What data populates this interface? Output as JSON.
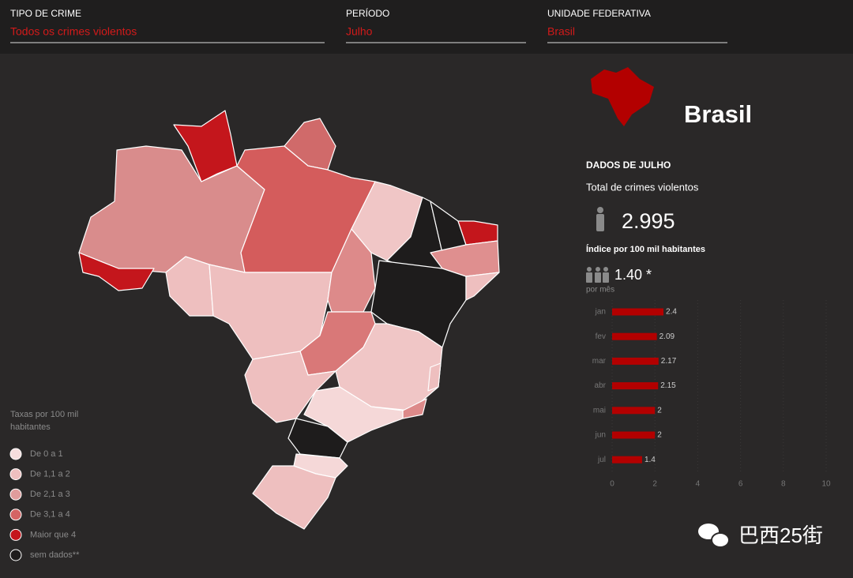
{
  "filters": [
    {
      "label": "TIPO DE CRIME",
      "value": "Todos os crimes violentos"
    },
    {
      "label": "PERÍODO",
      "value": "Julho"
    },
    {
      "label": "UNIDADE FEDERATIVA",
      "value": "Brasil"
    }
  ],
  "summary": {
    "place": "Brasil",
    "heading": "DADOS DE JULHO",
    "total_label": "Total de crimes violentos",
    "total": "2.995",
    "index_label": "Índice por 100 mil habitantes",
    "index": "1.40 *",
    "index_unit": "por mês"
  },
  "legend": {
    "title": "Taxas por 100 mil",
    "title_line2": "habitantes",
    "items": [
      {
        "label": "De 0 a 1",
        "color": "#f6dede"
      },
      {
        "label": "De 1,1 a 2",
        "color": "#eebfbf"
      },
      {
        "label": "De 2,1 a 3",
        "color": "#e09c9c"
      },
      {
        "label": "De 3,1 a 4",
        "color": "#d46464"
      },
      {
        "label": "Maior que 4",
        "color": "#c4161c"
      },
      {
        "label": "sem dados**",
        "color": "#1e1c1c"
      }
    ]
  },
  "watermark": "巴西25街",
  "chart_data": {
    "type": "bar",
    "orientation": "horizontal",
    "categories": [
      "jan",
      "fev",
      "mar",
      "abr",
      "mai",
      "jun",
      "jul"
    ],
    "values": [
      2.4,
      2.09,
      2.17,
      2.15,
      2,
      2,
      1.4
    ],
    "color": "#b30000",
    "xlim": [
      0,
      10
    ],
    "xticks": [
      0,
      2,
      4,
      6,
      8,
      10
    ],
    "grid": true
  }
}
